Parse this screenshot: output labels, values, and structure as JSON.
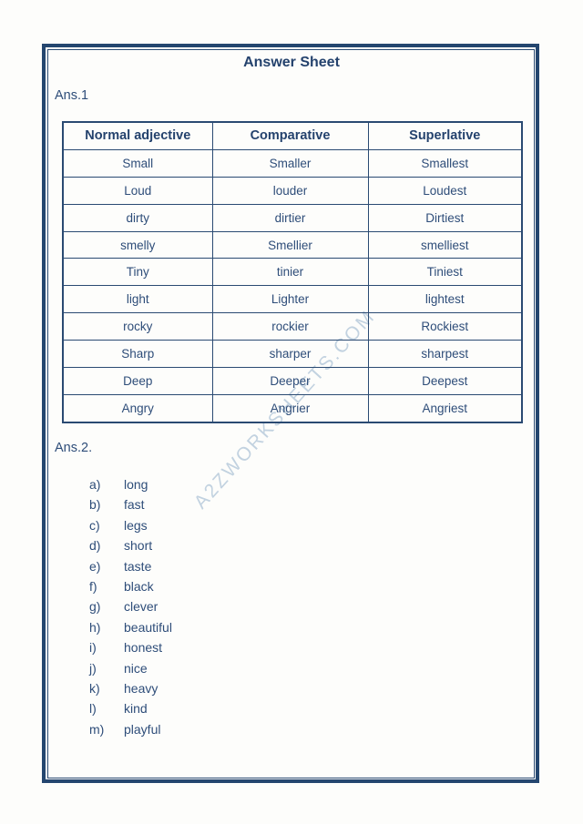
{
  "page": {
    "title": "Answer Sheet",
    "section1_label": "Ans.1",
    "section2_label": "Ans.2.",
    "watermark": "A2ZWORKSHEETS.COM"
  },
  "colors": {
    "ink": "#2e4d79",
    "border": "#2a4a72",
    "title_ink": "#24426d",
    "watermark": "#c2d2e0",
    "background": "#fdfdfb"
  },
  "table": {
    "headers": [
      "Normal adjective",
      "Comparative",
      "Superlative"
    ],
    "rows": [
      [
        "Small",
        "Smaller",
        "Smallest"
      ],
      [
        "Loud",
        "louder",
        "Loudest"
      ],
      [
        "dirty",
        "dirtier",
        "Dirtiest"
      ],
      [
        "smelly",
        "Smellier",
        "smelliest"
      ],
      [
        "Tiny",
        "tinier",
        "Tiniest"
      ],
      [
        "light",
        "Lighter",
        "lightest"
      ],
      [
        "rocky",
        "rockier",
        "Rockiest"
      ],
      [
        "Sharp",
        "sharper",
        "sharpest"
      ],
      [
        "Deep",
        "Deeper",
        "Deepest"
      ],
      [
        "Angry",
        "Angrier",
        "Angriest"
      ]
    ]
  },
  "answers2": [
    {
      "letter": "a)",
      "text": "long"
    },
    {
      "letter": "b)",
      "text": "fast"
    },
    {
      "letter": "c)",
      "text": "legs"
    },
    {
      "letter": "d)",
      "text": "short"
    },
    {
      "letter": "e)",
      "text": "taste"
    },
    {
      "letter": "f)",
      "text": "black"
    },
    {
      "letter": "g)",
      "text": "clever"
    },
    {
      "letter": "h)",
      "text": "beautiful"
    },
    {
      "letter": "i)",
      "text": "honest"
    },
    {
      "letter": "j)",
      "text": "nice"
    },
    {
      "letter": "k)",
      "text": "heavy"
    },
    {
      "letter": "l)",
      "text": "kind"
    },
    {
      "letter": "m)",
      "text": "playful"
    }
  ]
}
